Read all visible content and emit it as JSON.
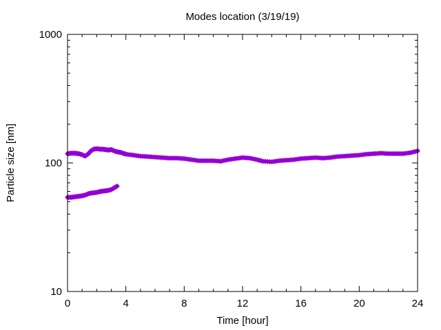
{
  "chart_data": {
    "type": "scatter",
    "title": "Modes location (3/19/19)",
    "xlabel": "Time [hour]",
    "ylabel": "Particle size [nm]",
    "xlim": [
      0,
      24
    ],
    "ylim": [
      10,
      1000
    ],
    "yscale": "log",
    "xticks": [
      0,
      4,
      8,
      12,
      16,
      20,
      24
    ],
    "xtick_labels": [
      "0",
      "4",
      "8",
      "12",
      "16",
      "20",
      "24"
    ],
    "yticks": [
      10,
      100,
      1000
    ],
    "ytick_labels": [
      "10",
      "100",
      "1000"
    ],
    "grid": false,
    "marker_color": "#9400d3",
    "series": [
      {
        "x": [
          0.0,
          0.25,
          0.5,
          0.75,
          1.0,
          1.2,
          1.4,
          1.6,
          1.8,
          2.0,
          2.2,
          2.4,
          2.6,
          2.8,
          3.0,
          3.2,
          3.4,
          3.6,
          3.8,
          4.0,
          4.5,
          5.0,
          5.5,
          6.0,
          6.5,
          7.0,
          7.5,
          8.0,
          8.5,
          9.0,
          9.5,
          10.0,
          10.5,
          11.0,
          11.5,
          12.0,
          12.5,
          13.0,
          13.4,
          14.0,
          14.5,
          15.0,
          15.5,
          16.0,
          16.5,
          17.0,
          17.5,
          18.0,
          18.5,
          19.0,
          19.5,
          20.0,
          20.5,
          21.0,
          21.5,
          22.0,
          22.5,
          23.0,
          23.5,
          24.0
        ],
        "y": [
          118,
          119,
          119,
          118,
          116,
          113,
          117,
          124,
          128,
          129,
          128,
          128,
          127,
          126,
          127,
          124,
          122,
          121,
          119,
          117,
          115,
          113,
          112,
          111,
          110,
          109,
          109,
          108,
          106,
          104,
          104,
          104,
          103,
          106,
          108,
          110,
          109,
          106,
          103,
          102,
          104,
          105,
          106,
          108,
          109,
          110,
          109,
          110,
          112,
          113,
          114,
          115,
          117,
          118,
          119,
          118,
          118,
          118,
          120,
          124
        ]
      },
      {
        "x": [
          0.0,
          0.25,
          0.5,
          0.75,
          1.0,
          1.25,
          1.5,
          1.75,
          2.0,
          2.25,
          2.5,
          2.75,
          3.0,
          3.2,
          3.4
        ],
        "y": [
          54,
          54,
          54.5,
          55,
          55.5,
          56.5,
          58,
          58.5,
          59,
          60,
          60.5,
          61,
          62,
          64,
          66
        ]
      }
    ]
  }
}
